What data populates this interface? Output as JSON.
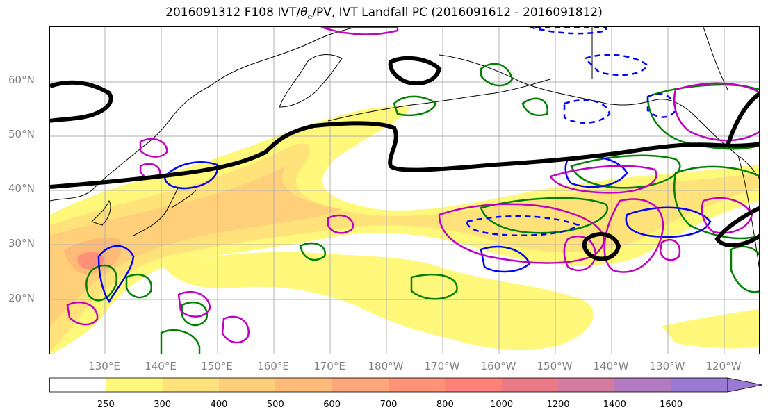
{
  "title_prefix": "2016091312 F108 IVT/",
  "title_theta": "θ",
  "title_sub": "e",
  "title_suffix": "/PV, IVT Landfall PC (2016091612 - 2016091812)",
  "lat_labels": [
    "60°N",
    "50°N",
    "40°N",
    "30°N",
    "20°N"
  ],
  "lon_labels": [
    "130°E",
    "140°E",
    "150°E",
    "160°E",
    "170°E",
    "180°W",
    "170°W",
    "160°W",
    "150°W",
    "140°W",
    "130°W",
    "120°W"
  ],
  "colorbar": {
    "levels": [
      "250",
      "300",
      "400",
      "500",
      "600",
      "700",
      "800",
      "1000",
      "1200",
      "1400",
      "1600"
    ],
    "colors": [
      "#ffffff",
      "#fff87a",
      "#ffe27a",
      "#ffcf7a",
      "#ffba78",
      "#ffa77a",
      "#ff9179",
      "#ff7f79",
      "#ec7a86",
      "#d57aa0",
      "#b27ac2",
      "#9a7ad4"
    ],
    "extend": "max"
  },
  "contour_colors": {
    "theta": "#000000",
    "pv_pos": "#008000",
    "pv_neg": "#0000ff",
    "ivt_pc": "#c000c0",
    "land": "#000000"
  }
}
